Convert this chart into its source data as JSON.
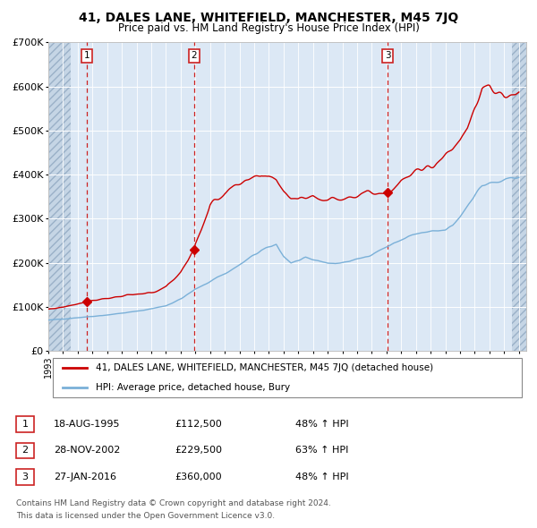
{
  "title1": "41, DALES LANE, WHITEFIELD, MANCHESTER, M45 7JQ",
  "title2": "Price paid vs. HM Land Registry's House Price Index (HPI)",
  "legend_line1": "41, DALES LANE, WHITEFIELD, MANCHESTER, M45 7JQ (detached house)",
  "legend_line2": "HPI: Average price, detached house, Bury",
  "transactions": [
    {
      "num": 1,
      "date": "18-AUG-1995",
      "price": 112500,
      "pct": "48%",
      "year_x": 1995.62
    },
    {
      "num": 2,
      "date": "28-NOV-2002",
      "price": 229500,
      "pct": "63%",
      "year_x": 2002.91
    },
    {
      "num": 3,
      "date": "27-JAN-2016",
      "price": 360000,
      "pct": "48%",
      "year_x": 2016.07
    }
  ],
  "footnote1": "Contains HM Land Registry data © Crown copyright and database right 2024.",
  "footnote2": "This data is licensed under the Open Government Licence v3.0.",
  "plot_bg": "#dce8f5",
  "red_line_color": "#cc0000",
  "blue_line_color": "#7ab0d8",
  "dashed_line_color": "#cc2222",
  "marker_color": "#cc0000",
  "xmin": 1993.0,
  "xmax": 2025.5,
  "ymin": 0,
  "ymax": 700000,
  "yticks": [
    0,
    100000,
    200000,
    300000,
    400000,
    500000,
    600000,
    700000
  ],
  "ytick_labels": [
    "£0",
    "£100K",
    "£200K",
    "£300K",
    "£400K",
    "£500K",
    "£600K",
    "£700K"
  ],
  "hpi_anchors_t": [
    1993.0,
    1994.0,
    1995.0,
    1996.0,
    1997.0,
    1998.0,
    1999.0,
    2000.0,
    2001.0,
    2002.0,
    2003.0,
    2004.0,
    2004.5,
    2005.0,
    2006.0,
    2007.0,
    2007.5,
    2008.0,
    2008.5,
    2009.0,
    2009.5,
    2010.0,
    2010.5,
    2011.0,
    2011.5,
    2012.0,
    2012.5,
    2013.0,
    2013.5,
    2014.0,
    2014.5,
    2015.0,
    2015.5,
    2016.0,
    2016.5,
    2017.0,
    2017.5,
    2018.0,
    2018.5,
    2019.0,
    2019.5,
    2020.0,
    2020.5,
    2021.0,
    2021.5,
    2022.0,
    2022.5,
    2023.0,
    2023.5,
    2024.0,
    2024.5,
    2025.0
  ],
  "hpi_anchors_v": [
    70000,
    73000,
    76000,
    79000,
    82000,
    86000,
    90000,
    96000,
    103000,
    118000,
    140000,
    158000,
    168000,
    175000,
    195000,
    218000,
    228000,
    235000,
    242000,
    215000,
    200000,
    205000,
    210000,
    207000,
    204000,
    200000,
    198000,
    201000,
    204000,
    208000,
    213000,
    220000,
    228000,
    236000,
    244000,
    252000,
    260000,
    265000,
    268000,
    270000,
    272000,
    274000,
    285000,
    305000,
    330000,
    355000,
    375000,
    380000,
    382000,
    385000,
    392000,
    398000
  ],
  "red_anchors_t": [
    1993.0,
    1994.0,
    1995.0,
    1995.62,
    1996.0,
    1997.0,
    1998.0,
    1999.0,
    2000.0,
    2001.0,
    2002.0,
    2002.91,
    2003.0,
    2003.5,
    2004.0,
    2005.0,
    2006.0,
    2007.0,
    2007.5,
    2008.0,
    2008.5,
    2009.0,
    2009.5,
    2010.0,
    2010.5,
    2011.0,
    2011.5,
    2012.0,
    2012.5,
    2013.0,
    2013.5,
    2014.0,
    2014.5,
    2015.0,
    2015.5,
    2016.07,
    2016.5,
    2017.0,
    2017.5,
    2018.0,
    2018.5,
    2019.0,
    2019.5,
    2020.0,
    2020.5,
    2021.0,
    2021.5,
    2022.0,
    2022.5,
    2023.0,
    2023.5,
    2024.0,
    2024.5,
    2025.0
  ],
  "red_anchors_v": [
    95000,
    100000,
    108000,
    112500,
    115000,
    120000,
    124000,
    128000,
    132000,
    145000,
    180000,
    229500,
    242000,
    285000,
    330000,
    360000,
    375000,
    390000,
    400000,
    398000,
    390000,
    365000,
    350000,
    345000,
    348000,
    352000,
    345000,
    342000,
    345000,
    348000,
    352000,
    355000,
    358000,
    360000,
    360000,
    360000,
    370000,
    385000,
    395000,
    405000,
    415000,
    420000,
    430000,
    445000,
    460000,
    480000,
    510000,
    555000,
    590000,
    595000,
    585000,
    575000,
    580000,
    585000
  ]
}
